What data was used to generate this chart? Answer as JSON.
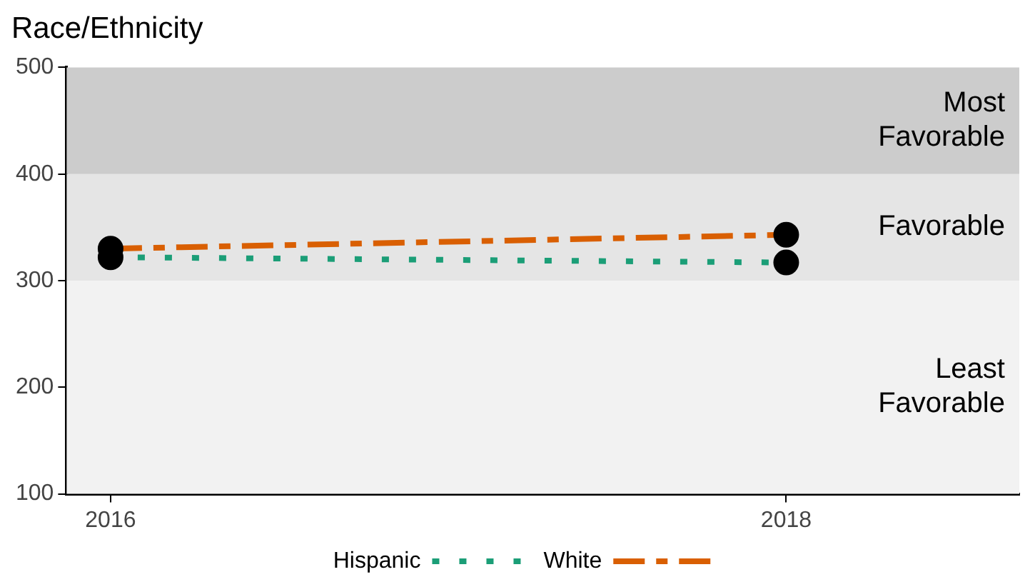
{
  "chart_data": {
    "type": "line",
    "title": "Race/Ethnicity",
    "x": [
      2016,
      2018
    ],
    "series": [
      {
        "name": "Hispanic",
        "color": "#1b9e77",
        "values": [
          322,
          317
        ],
        "line_style": "dotted"
      },
      {
        "name": "White",
        "color": "#d95f02",
        "values": [
          330,
          343
        ],
        "line_style": "dashed"
      }
    ],
    "xlim": [
      2015.87,
      2018.69
    ],
    "xticks": [
      2016,
      2018
    ],
    "ylim": [
      100,
      500
    ],
    "yticks": [
      100,
      200,
      300,
      400,
      500
    ],
    "bands": [
      {
        "axis": "y",
        "from": 100,
        "to": 300,
        "label": "Least Favorable",
        "color": "#f2f2f2"
      },
      {
        "axis": "y",
        "from": 300,
        "to": 400,
        "label": "Favorable",
        "color": "#e5e5e5"
      },
      {
        "axis": "y",
        "from": 400,
        "to": 500,
        "label": "Most Favorable",
        "color": "#cccccc"
      }
    ],
    "marker": "circle",
    "grid": false,
    "legend": "bottom"
  }
}
